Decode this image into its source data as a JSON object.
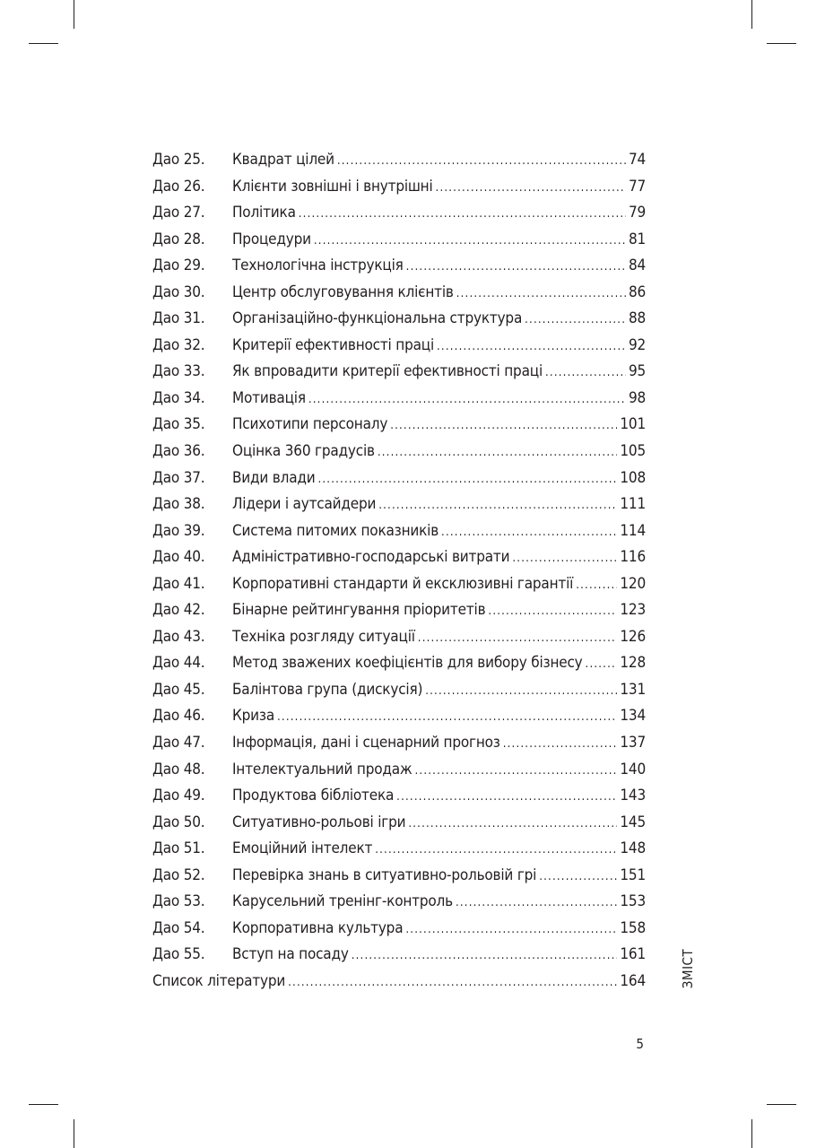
{
  "toc": [
    {
      "num": "Дао 25.",
      "title": "Квадрат цілей",
      "page": "74"
    },
    {
      "num": "Дао 26.",
      "title": "Клієнти зовнішні і внутрішні",
      "page": "77"
    },
    {
      "num": "Дао 27.",
      "title": "Політика",
      "page": "79"
    },
    {
      "num": "Дао 28.",
      "title": "Процедури",
      "page": "81"
    },
    {
      "num": "Дао 29.",
      "title": "Технологічна інструкція",
      "page": "84"
    },
    {
      "num": "Дао 30.",
      "title": "Центр обслуговування клієнтів",
      "page": "86"
    },
    {
      "num": "Дао 31.",
      "title": "Організаційно-функціональна структура",
      "page": "88"
    },
    {
      "num": "Дао 32.",
      "title": "Критерії ефективності праці",
      "page": "92"
    },
    {
      "num": "Дао 33.",
      "title": "Як впровадити критерії ефективності праці",
      "page": "95"
    },
    {
      "num": "Дао 34.",
      "title": "Мотивація",
      "page": "98"
    },
    {
      "num": "Дао 35.",
      "title": "Психотипи персоналу",
      "page": "101"
    },
    {
      "num": "Дао 36.",
      "title": "Оцінка 360 градусів",
      "page": "105"
    },
    {
      "num": "Дао 37.",
      "title": "Види влади",
      "page": "108"
    },
    {
      "num": "Дао 38.",
      "title": "Лідери і аутсайдери",
      "page": "111"
    },
    {
      "num": "Дао 39.",
      "title": "Система питомих показників",
      "page": "114"
    },
    {
      "num": "Дао 40.",
      "title": "Адміністративно-господарські витрати",
      "page": "116"
    },
    {
      "num": "Дао 41.",
      "title": "Корпоративні стандарти й ексклюзивні гарантії",
      "page": "120"
    },
    {
      "num": "Дао 42.",
      "title": "Бінарне рейтингування пріоритетів",
      "page": "123"
    },
    {
      "num": "Дао 43.",
      "title": "Техніка розгляду ситуації",
      "page": "126"
    },
    {
      "num": "Дао 44.",
      "title": "Метод зважених коефіцієнтів для вибору бізнесу",
      "page": "128"
    },
    {
      "num": "Дао 45.",
      "title": "Балінтова група (дискусія)",
      "page": "131"
    },
    {
      "num": "Дао 46.",
      "title": "Криза",
      "page": "134"
    },
    {
      "num": "Дао 47.",
      "title": "Інформація, дані і сценарний прогноз",
      "page": "137"
    },
    {
      "num": "Дао 48.",
      "title": "Інтелектуальний продаж",
      "page": "140"
    },
    {
      "num": "Дао 49.",
      "title": "Продуктова бібліотека",
      "page": "143"
    },
    {
      "num": "Дао 50.",
      "title": "Ситуативно-рольові ігри",
      "page": "145"
    },
    {
      "num": "Дао 51.",
      "title": "Емоційний інтелект",
      "page": "148"
    },
    {
      "num": "Дао 52.",
      "title": "Перевірка знань в ситуативно-рольовій грі",
      "page": "151"
    },
    {
      "num": "Дао 53.",
      "title": "Карусельний тренінг-контроль",
      "page": "153"
    },
    {
      "num": "Дао 54.",
      "title": "Корпоративна культура",
      "page": "158"
    },
    {
      "num": "Дао 55.",
      "title": "Вступ на посаду",
      "page": "161"
    },
    {
      "num": "",
      "title": "Список літератури",
      "page": "164"
    }
  ],
  "side_label": "ЗМІСТ",
  "page_number": "5"
}
